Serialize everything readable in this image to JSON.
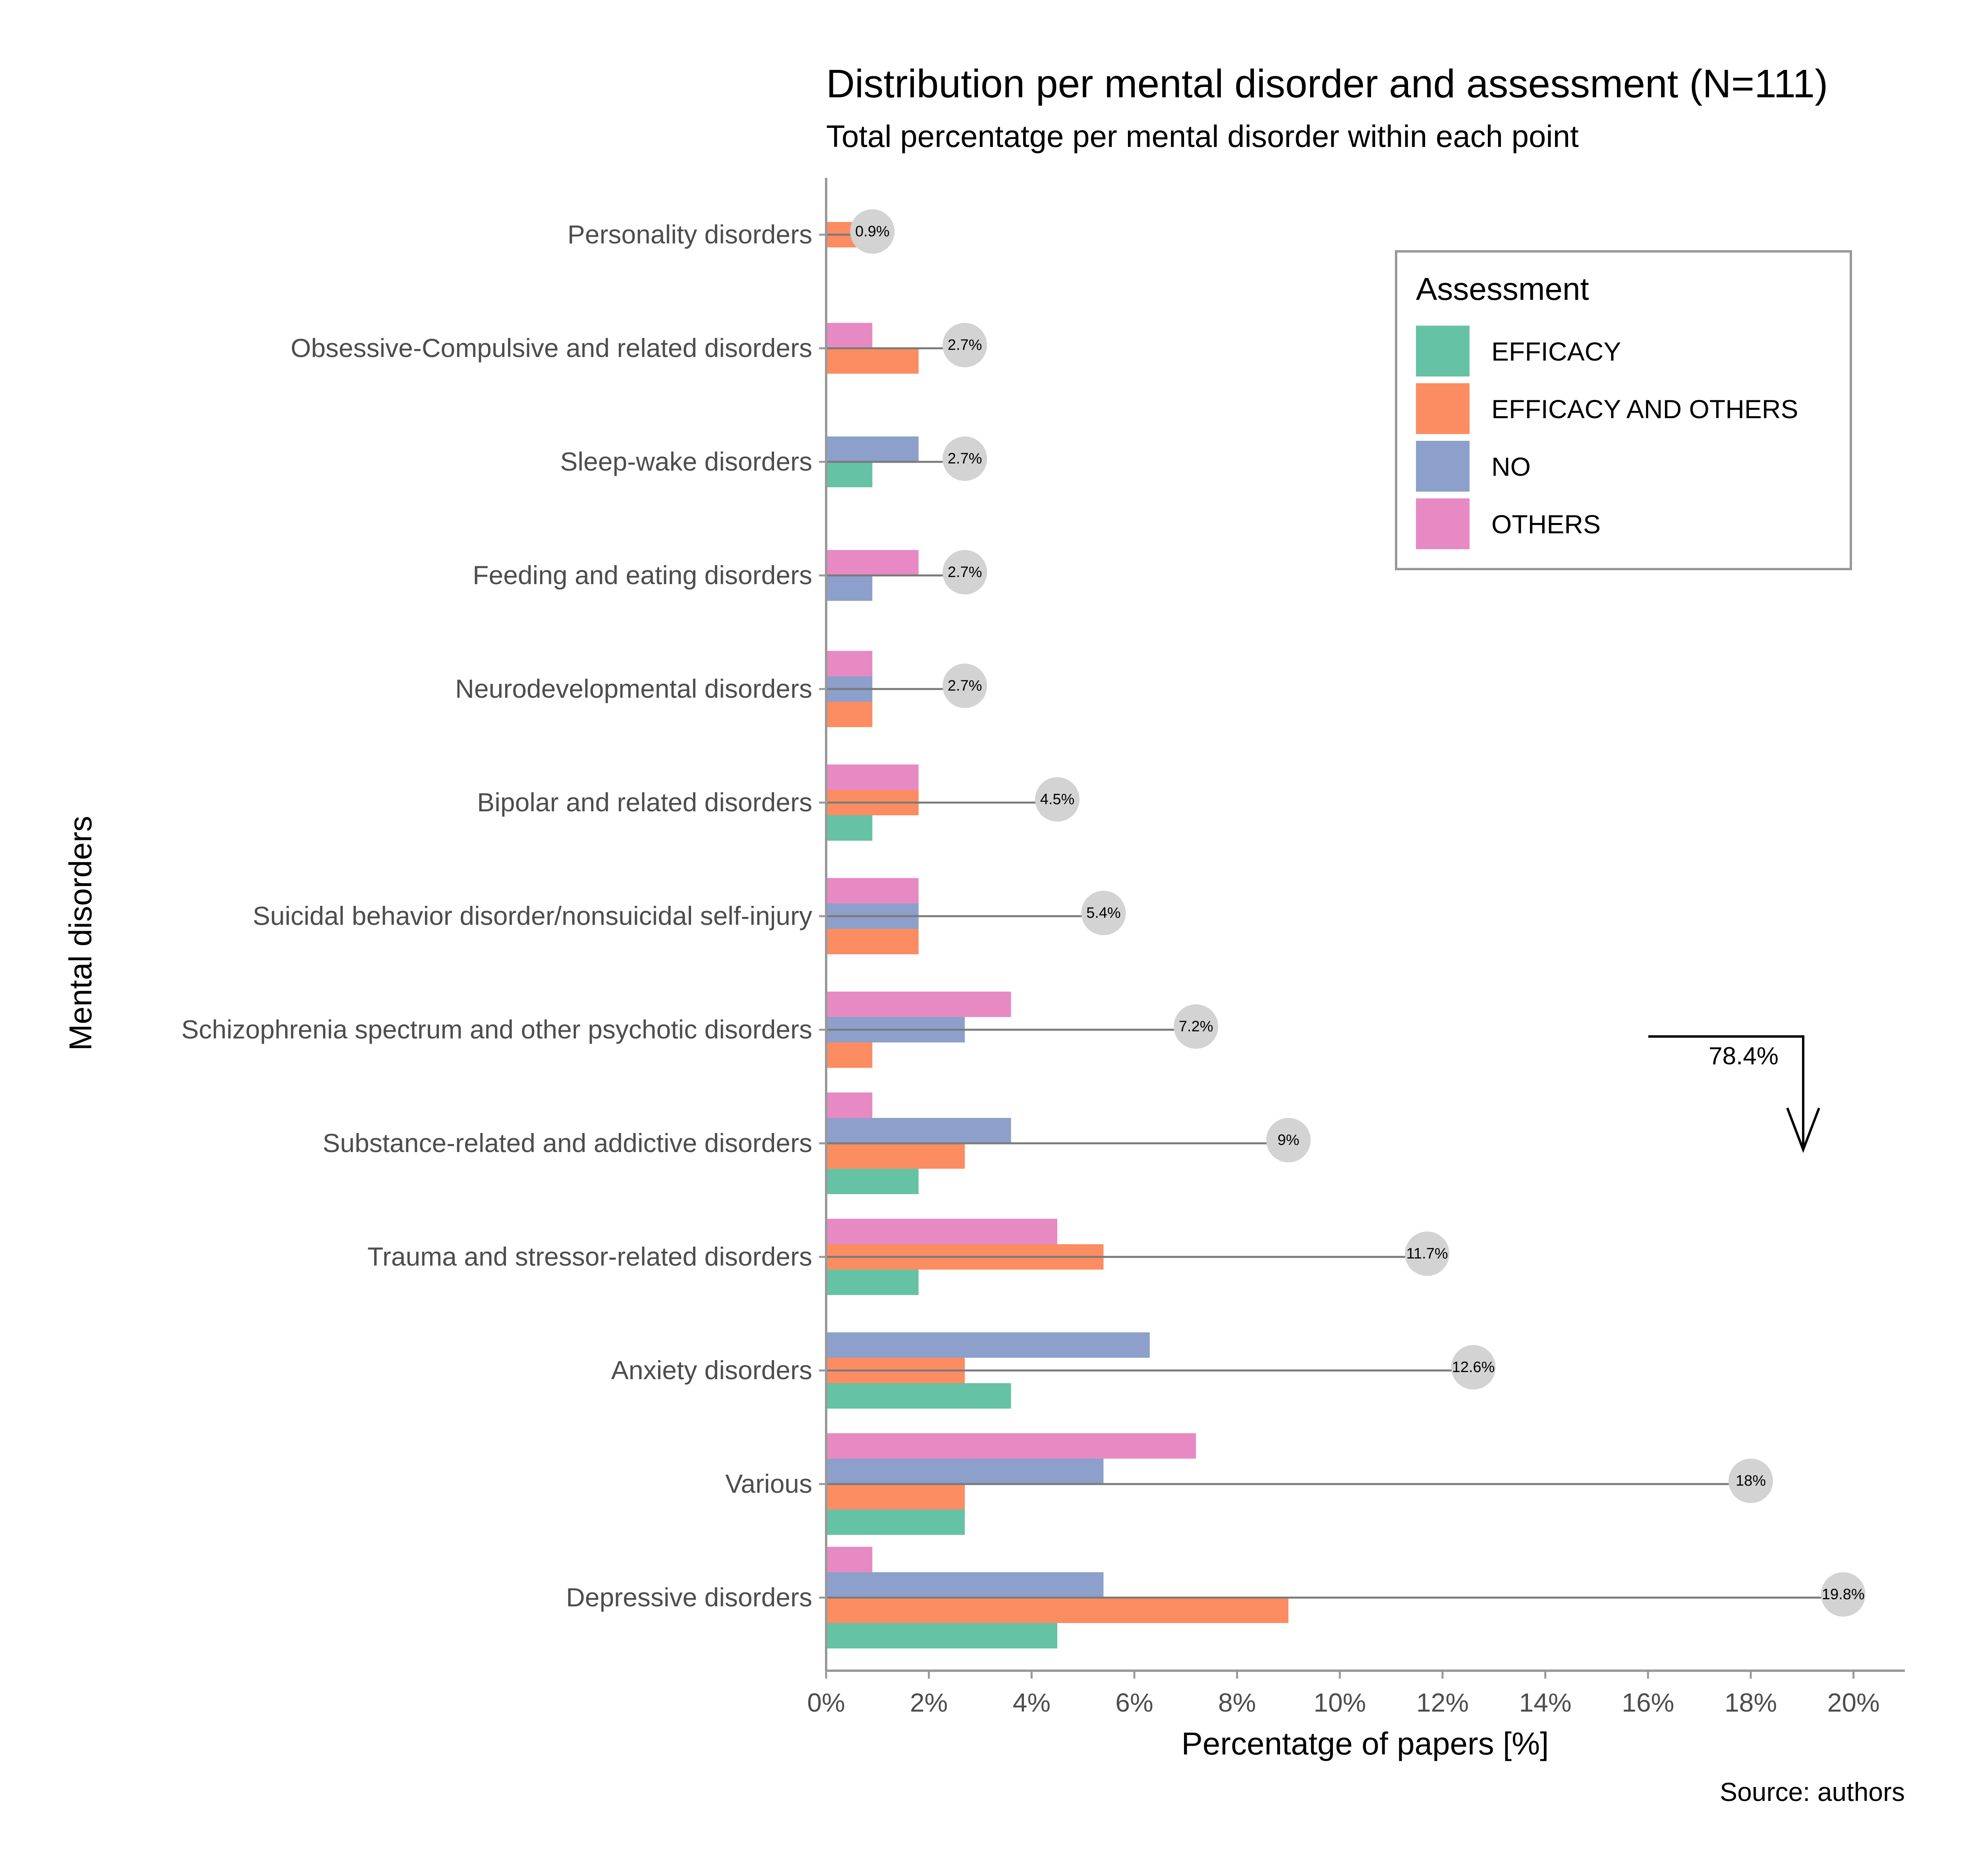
{
  "title": "Distribution per mental disorder and assessment (N=111)",
  "subtitle": "Total percentatge per mental disorder within each point",
  "caption": "Source: authors",
  "chart_data": {
    "type": "bar",
    "orientation": "horizontal",
    "xlabel": "Percentatge of papers [%]",
    "ylabel": "Mental disorders",
    "xlim": [
      0,
      21
    ],
    "xticks": [
      "0%",
      "2%",
      "4%",
      "6%",
      "8%",
      "10%",
      "12%",
      "14%",
      "16%",
      "18%",
      "20%"
    ],
    "xtick_values": [
      0,
      2,
      4,
      6,
      8,
      10,
      12,
      14,
      16,
      18,
      20
    ],
    "grid": false,
    "legend": {
      "title": "Assessment",
      "placement": "top-right"
    },
    "categories": [
      "Personality disorders",
      "Obsessive-Compulsive and related disorders",
      "Sleep-wake disorders",
      "Feeding and eating disorders",
      "Neurodevelopmental disorders",
      "Bipolar and related disorders",
      "Suicidal behavior disorder/nonsuicidal self-injury",
      "Schizophrenia spectrum and other psychotic disorders",
      "Substance-related and addictive disorders",
      "Trauma and stressor-related disorders",
      "Anxiety disorders",
      "Various",
      "Depressive disorders"
    ],
    "series": [
      {
        "name": "EFFICACY",
        "color": "#66c2a5",
        "values": [
          0,
          0,
          0.9,
          0,
          0,
          0.9,
          0,
          0,
          1.8,
          1.8,
          3.6,
          2.7,
          4.5
        ]
      },
      {
        "name": "EFFICACY AND OTHERS",
        "color": "#fc8d62",
        "values": [
          0.9,
          1.8,
          0,
          0,
          0.9,
          1.8,
          1.8,
          0.9,
          2.7,
          5.4,
          2.7,
          2.7,
          9.0
        ]
      },
      {
        "name": "NO",
        "color": "#8da0cb",
        "values": [
          0,
          0,
          1.8,
          0.9,
          0.9,
          0,
          1.8,
          2.7,
          3.6,
          0,
          6.3,
          5.4,
          5.4
        ]
      },
      {
        "name": "OTHERS",
        "color": "#e78ac3",
        "values": [
          0,
          0.9,
          0,
          1.8,
          0.9,
          1.8,
          1.8,
          3.6,
          0.9,
          4.5,
          0,
          7.2,
          0.9
        ]
      }
    ],
    "totals": [
      0.9,
      2.7,
      2.7,
      2.7,
      2.7,
      4.5,
      5.4,
      7.2,
      9.0,
      11.7,
      12.6,
      18.0,
      19.8
    ],
    "total_labels": [
      "0.9%",
      "2.7%",
      "2.7%",
      "2.7%",
      "2.7%",
      "4.5%",
      "5.4%",
      "7.2%",
      "9%",
      "11.7%",
      "12.6%",
      "18%",
      "19.8%"
    ],
    "annotations": [
      {
        "text": "78.4%"
      }
    ]
  }
}
